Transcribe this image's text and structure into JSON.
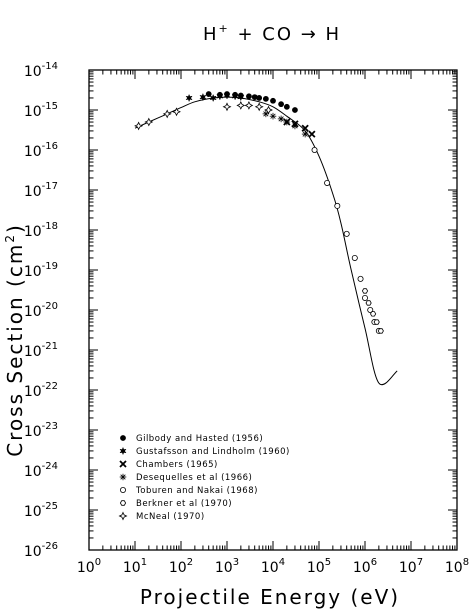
{
  "chart_data": {
    "type": "scatter",
    "title": "H+ + CO → H",
    "title_parts": {
      "h": "H",
      "plus_sup": "+",
      "rest": " + CO → H"
    },
    "xlabel": "Projectile Energy (eV)",
    "ylabel": "Cross Section (cm²)",
    "ylabel_parts": {
      "main": "Cross Section (cm",
      "sup": "2",
      "close": ")"
    },
    "x_scale": "log",
    "y_scale": "log",
    "xlim": [
      1,
      100000000
    ],
    "ylim": [
      1e-26,
      1e-14
    ],
    "x_ticks": [
      {
        "base": "10",
        "exp": "0"
      },
      {
        "base": "10",
        "exp": "1"
      },
      {
        "base": "10",
        "exp": "2"
      },
      {
        "base": "10",
        "exp": "3"
      },
      {
        "base": "10",
        "exp": "4"
      },
      {
        "base": "10",
        "exp": "5"
      },
      {
        "base": "10",
        "exp": "6"
      },
      {
        "base": "10",
        "exp": "7"
      },
      {
        "base": "10",
        "exp": "8"
      }
    ],
    "y_ticks": [
      {
        "base": "10",
        "exp": "-14"
      },
      {
        "base": "10",
        "exp": "-15"
      },
      {
        "base": "10",
        "exp": "-16"
      },
      {
        "base": "10",
        "exp": "-17"
      },
      {
        "base": "10",
        "exp": "-18"
      },
      {
        "base": "10",
        "exp": "-19"
      },
      {
        "base": "10",
        "exp": "-20"
      },
      {
        "base": "10",
        "exp": "-21"
      },
      {
        "base": "10",
        "exp": "-22"
      },
      {
        "base": "10",
        "exp": "-23"
      },
      {
        "base": "10",
        "exp": "-24"
      },
      {
        "base": "10",
        "exp": "-25"
      },
      {
        "base": "10",
        "exp": "-26"
      }
    ],
    "grid": false,
    "legend_position": "bottom-left",
    "fit_curve": {
      "x": [
        10,
        20,
        50,
        100,
        200,
        500,
        1000,
        2000,
        5000,
        10000,
        20000,
        50000,
        100000,
        200000,
        300000,
        500000,
        1000000,
        2000000,
        5000000
      ],
      "y": [
        3.5e-16,
        5e-16,
        8e-16,
        1.15e-15,
        1.6e-15,
        2e-15,
        2.1e-15,
        2e-15,
        1.6e-15,
        1.2e-15,
        7e-16,
        3e-16,
        7e-17,
        8e-18,
        1.5e-18,
        1e-19,
        3.5e-21,
        1.5e-22,
        3e-22
      ]
    },
    "series": [
      {
        "name": "Gilbody and Hasted (1956)",
        "marker": "filled-circle",
        "x": [
          400,
          700,
          1000,
          1500,
          2000,
          3000,
          4000,
          5000,
          7000,
          10000,
          15000,
          20000,
          30000
        ],
        "y": [
          2.5e-15,
          2.4e-15,
          2.5e-15,
          2.4e-15,
          2.3e-15,
          2.2e-15,
          2.1e-15,
          2e-15,
          1.9e-15,
          1.7e-15,
          1.4e-15,
          1.2e-15,
          1e-15
        ]
      },
      {
        "name": "Gustafsson and Lindholm (1960)",
        "marker": "filled-star",
        "x": [
          150,
          300,
          500,
          700,
          1000,
          1500,
          2000
        ],
        "y": [
          2e-15,
          2.1e-15,
          2e-15,
          2.2e-15,
          2.3e-15,
          2.2e-15,
          2.1e-15
        ]
      },
      {
        "name": "Chambers (1965)",
        "marker": "x-cross",
        "x": [
          20000,
          30000,
          50000,
          70000
        ],
        "y": [
          5e-16,
          4.5e-16,
          3.5e-16,
          2.5e-16
        ]
      },
      {
        "name": "Desequelles et al (1966)",
        "marker": "asterisk",
        "x": [
          7000,
          10000,
          15000,
          20000,
          30000,
          50000
        ],
        "y": [
          8e-16,
          7e-16,
          6e-16,
          5e-16,
          4e-16,
          2.5e-16
        ]
      },
      {
        "name": "Toburen and Nakai (1968)",
        "marker": "open-circle",
        "x": [
          80000,
          150000,
          250000,
          400000,
          600000,
          800000,
          1000000,
          1300000,
          1600000,
          2000000
        ],
        "y": [
          1e-16,
          1.5e-17,
          4e-18,
          8e-19,
          2e-19,
          6e-20,
          2e-20,
          1e-20,
          5e-21,
          3e-21
        ]
      },
      {
        "name": "Berkner et al (1970)",
        "marker": "open-hexagon",
        "x": [
          1000000,
          1200000,
          1500000,
          1800000,
          2200000
        ],
        "y": [
          3e-20,
          1.5e-20,
          8e-21,
          5e-21,
          3e-21
        ]
      },
      {
        "name": "McNeal (1970)",
        "marker": "open-star",
        "x": [
          12,
          20,
          50,
          80,
          1000,
          2000,
          3000,
          5000,
          8000
        ],
        "y": [
          4e-16,
          5e-16,
          8e-16,
          9e-16,
          1.2e-15,
          1.3e-15,
          1.3e-15,
          1.2e-15,
          1e-15
        ]
      }
    ]
  }
}
